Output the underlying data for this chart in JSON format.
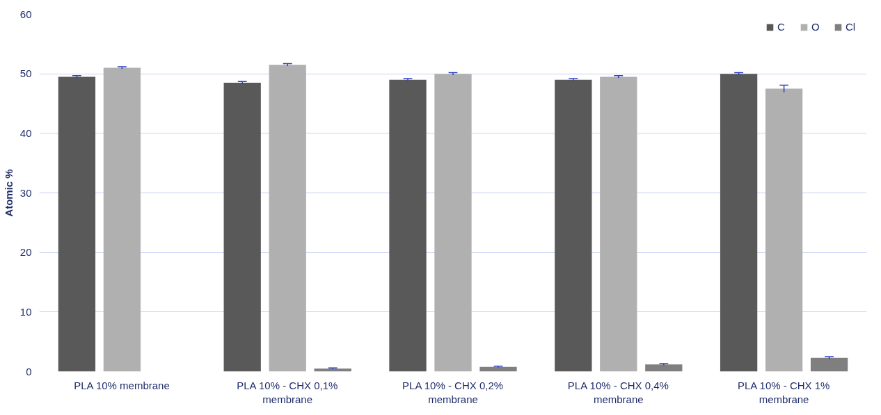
{
  "chart_data": {
    "type": "bar",
    "ylabel": "Atomic %",
    "categories": [
      "PLA 10% membrane",
      "PLA 10% - CHX 0,1% membrane",
      "PLA 10% - CHX 0,2% membrane",
      "PLA 10% - CHX 0,4% membrane",
      "PLA 10% - CHX 1% membrane"
    ],
    "series": [
      {
        "name": "C",
        "color": "#595959",
        "values": [
          49.5,
          48.5,
          49.0,
          49.0,
          50.0
        ],
        "errors": [
          0.2,
          0.2,
          0.2,
          0.2,
          0.2
        ]
      },
      {
        "name": "O",
        "color": "#b0b0b0",
        "values": [
          51,
          51.5,
          50,
          49.5,
          47.5
        ],
        "errors": [
          0.2,
          0.2,
          0.2,
          0.2,
          0.6
        ]
      },
      {
        "name": "Cl",
        "color": "#7f7f7f",
        "values": [
          null,
          0.5,
          0.8,
          1.2,
          2.3
        ],
        "errors": [
          null,
          0.1,
          0.1,
          0.15,
          0.2
        ]
      }
    ],
    "ylim": [
      0,
      60
    ],
    "yticks": [
      0,
      10,
      20,
      30,
      40,
      50,
      60
    ],
    "grid": "y",
    "legend": "top right"
  }
}
